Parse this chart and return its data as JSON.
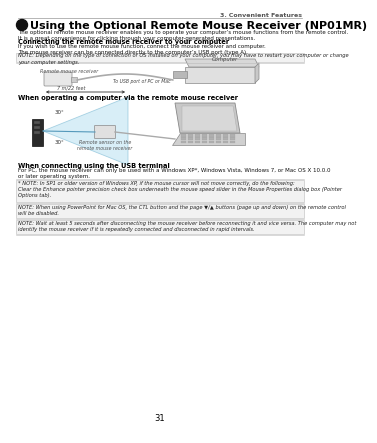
{
  "page_number": "31",
  "header_right": "3. Convenient Features",
  "section_title": "Using the Optional Remote Mouse Receiver (NP01MR)",
  "intro_text": "The optional remote mouse receiver enables you to operate your computer’s mouse functions from the remote control.\nIt is a great convenience for clicking through your computer-generated presentations.",
  "subsection1_title": "Connecting the remote mouse receiver to your computer",
  "subsection1_text": "If you wish to use the remote mouse function, connect the mouse receiver and computer.\nThe mouse receiver can be connected directly to the computer’s USB port (type A).",
  "note1": "NOTE: Depending on the type of connection or OS installed on your computer, you may have to restart your computer or change\nyour computer settings.",
  "label_computer": "Computer",
  "label_remote": "Remote mouse receiver",
  "label_usb": "To USB port of PC or Mac",
  "subsection2_title": "When operating a computer via the remote mouse receiver",
  "label_distance": "7 m/22 feet",
  "label_angle1": "30°",
  "label_angle2": "30°",
  "label_sensor": "Remote sensor on the\nremote mouse receiver",
  "subsection3_title": "When connecting using the USB terminal",
  "subsection3_text": "For PC, the mouse receiver can only be used with a Windows XP*, Windows Vista, Windows 7, or Mac OS X 10.0.0\nor later operating system.",
  "note2_star": "* NOTE: In SP1 or older version of Windows XP, if the mouse cursor will not move correctly, do the following:\nClear the Enhance pointer precision check box underneath the mouse speed slider in the Mouse Properties dialog box (Pointer\nOptions tab).",
  "note3": "NOTE: When using PowerPoint for Mac OS, the CTL button and the page ▼/▲ buttons (page up and down) on the remote control\nwill be disabled.",
  "note4": "NOTE: Wait at least 5 seconds after disconnecting the mouse receiver before reconnecting it and vice versa. The computer may not\nidentify the mouse receiver if it is repeatedly connected and disconnected in rapid intervals.",
  "bg_color": "#ffffff"
}
